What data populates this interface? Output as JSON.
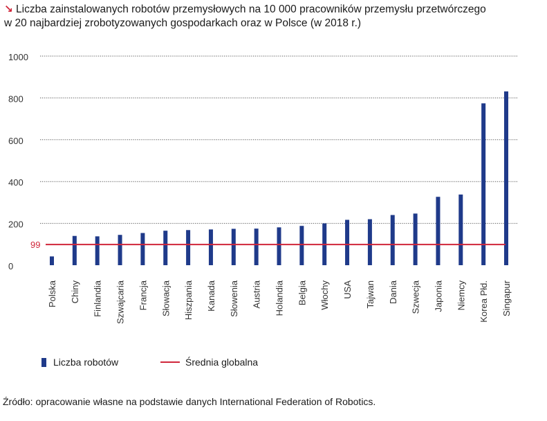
{
  "title_arrow": "↘",
  "title_line1": "Liczba zainstalowanych robotów przemysłowych na 10 000 pracowników przemysłu przetwórczego",
  "title_line2": "w 20 najbardziej zrobotyzowanych gospodarkach oraz w Polsce (w 2018 r.)",
  "source": "Źródło: opracowanie własne na podstawie danych International Federation of Robotics.",
  "legend": {
    "bars_label": "Liczba robotów",
    "line_label": "Średnia globalna"
  },
  "colors": {
    "bar": "#1f3a8a",
    "average": "#d0263a",
    "grid": "#555555"
  },
  "chart_data": {
    "type": "bar",
    "categories": [
      "Polska",
      "Chiny",
      "Finlandia",
      "Szwajcaria",
      "Francja",
      "Słowacja",
      "Hiszpania",
      "Kanada",
      "Słowenia",
      "Austria",
      "Holandia",
      "Belgia",
      "Włochy",
      "USA",
      "Tajwan",
      "Dania",
      "Szwecja",
      "Japonia",
      "Niemcy",
      "Korea Płd.",
      "Singapur"
    ],
    "values": [
      42,
      140,
      138,
      145,
      154,
      165,
      168,
      171,
      174,
      175,
      181,
      188,
      200,
      217,
      220,
      240,
      247,
      327,
      338,
      774,
      831
    ],
    "ylim": [
      0,
      1000
    ],
    "yticks": [
      "0",
      "200",
      "400",
      "600",
      "800",
      "1000"
    ],
    "ytick_values": [
      0,
      200,
      400,
      600,
      800,
      1000
    ],
    "grid": true,
    "grid_style": "dotted",
    "average_line": {
      "value": 99,
      "label": "99"
    },
    "legend_position": "bottom-left",
    "xlabel": "",
    "ylabel": ""
  }
}
